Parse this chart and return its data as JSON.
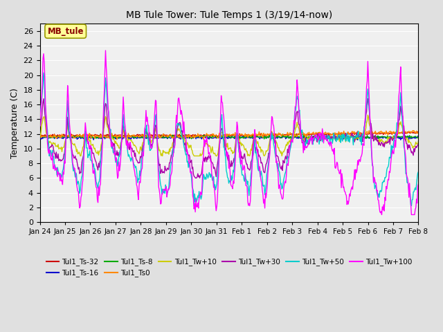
{
  "title": "MB Tule Tower: Tule Temps 1 (3/19/14-now)",
  "ylabel": "Temperature (C)",
  "ylim": [
    0,
    27
  ],
  "yticks": [
    0,
    2,
    4,
    6,
    8,
    10,
    12,
    14,
    16,
    18,
    20,
    22,
    24,
    26
  ],
  "bg_color": "#e0e0e0",
  "plot_bg": "#f0f0f0",
  "grid_color": "#ffffff",
  "annotation_box": "MB_tule",
  "annotation_color": "#880000",
  "annotation_bg": "#ffff99",
  "series": [
    {
      "label": "Tul1_Ts-32",
      "color": "#cc0000"
    },
    {
      "label": "Tul1_Ts-16",
      "color": "#0000cc"
    },
    {
      "label": "Tul1_Ts-8",
      "color": "#00aa00"
    },
    {
      "label": "Tul1_Ts0",
      "color": "#ff8800"
    },
    {
      "label": "Tul1_Tw+10",
      "color": "#cccc00"
    },
    {
      "label": "Tul1_Tw+30",
      "color": "#aa00aa"
    },
    {
      "label": "Tul1_Tw+50",
      "color": "#00cccc"
    },
    {
      "label": "Tul1_Tw+100",
      "color": "#ff00ff"
    }
  ],
  "n_points": 600,
  "x_start": 0,
  "x_end": 15,
  "xtick_positions": [
    0,
    1,
    2,
    3,
    4,
    5,
    6,
    7,
    8,
    9,
    10,
    11,
    12,
    13,
    14,
    15
  ],
  "xtick_labels": [
    "Jan 24",
    "Jan 25",
    "Jan 26",
    "Jan 27",
    "Jan 28",
    "Jan 29",
    "Jan 30",
    "Jan 31",
    "Feb 1",
    "Feb 2",
    "Feb 3",
    "Feb 4",
    "Feb 5",
    "Feb 6",
    "Feb 7",
    "Feb 8"
  ]
}
